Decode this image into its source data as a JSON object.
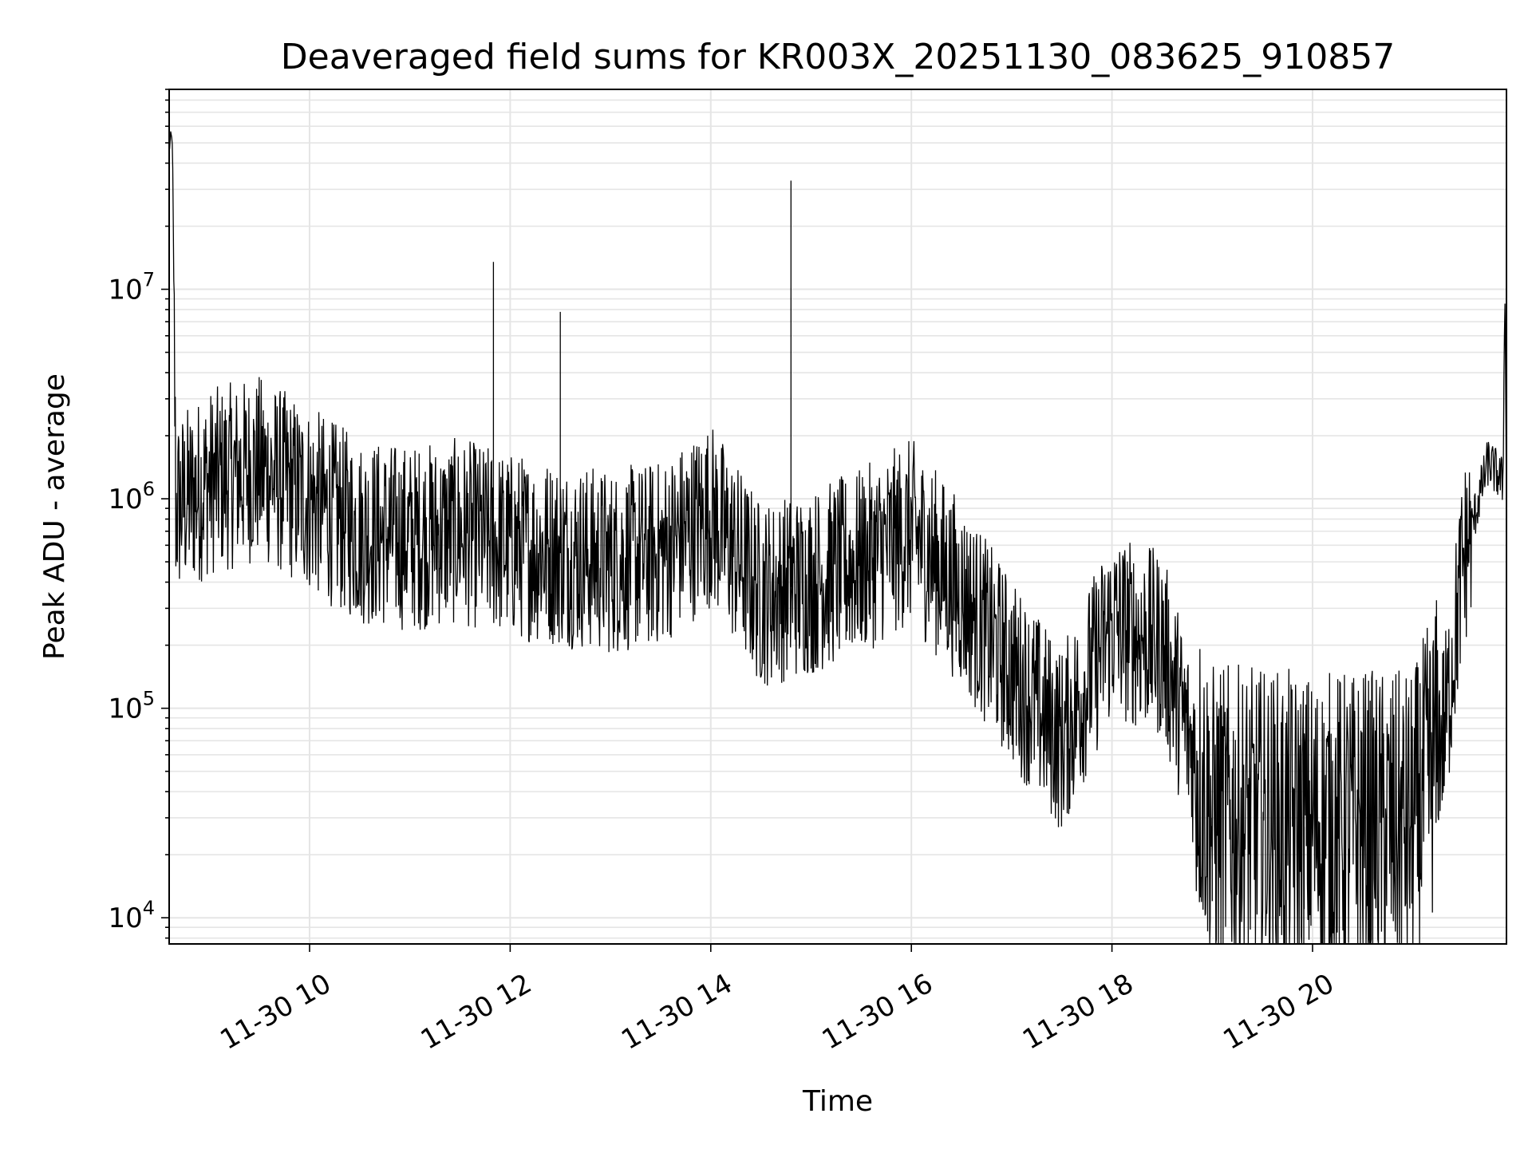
{
  "chart_data": {
    "type": "line",
    "title": "Deaveraged field sums for KR003X_20251130_083625_910857",
    "xlabel": "Time",
    "ylabel": "Peak ADU - average",
    "yscale": "log",
    "ylim": [
      7500,
      90000000
    ],
    "xlim": [
      "2025-11-30 08:36",
      "2025-11-30 21:56"
    ],
    "grid": true,
    "line_color": "#000000",
    "grid_color": "#e5e5e5",
    "x_ticks": [
      "11-30 10",
      "11-30 12",
      "11-30 14",
      "11-30 16",
      "11-30 18",
      "11-30 20"
    ],
    "x_tick_times": [
      "2025-11-30 10:00",
      "2025-11-30 12:00",
      "2025-11-30 14:00",
      "2025-11-30 16:00",
      "2025-11-30 18:00",
      "2025-11-30 20:00"
    ],
    "y_ticks": [
      {
        "base": "10",
        "exp": "4",
        "value": 10000
      },
      {
        "base": "10",
        "exp": "5",
        "value": 100000
      },
      {
        "base": "10",
        "exp": "6",
        "value": 1000000
      },
      {
        "base": "10",
        "exp": "7",
        "value": 10000000
      }
    ],
    "series": [
      {
        "points": [
          [
            "2025-11-30 08:36",
            45000000
          ],
          [
            "2025-11-30 08:37",
            55000000
          ],
          [
            "2025-11-30 08:38",
            50000000
          ],
          [
            "2025-11-30 08:40",
            900000
          ],
          [
            "2025-11-30 09:00",
            1200000
          ],
          [
            "2025-11-30 09:30",
            1400000
          ],
          [
            "2025-11-30 10:00",
            1000000
          ],
          [
            "2025-11-30 10:30",
            700000
          ],
          [
            "2025-11-30 11:00",
            650000
          ],
          [
            "2025-11-30 11:30",
            700000
          ],
          [
            "2025-11-30 12:00",
            600000
          ],
          [
            "2025-11-30 12:30",
            550000
          ],
          [
            "2025-11-30 13:00",
            500000
          ],
          [
            "2025-11-30 13:30",
            550000
          ],
          [
            "2025-11-30 14:00",
            850000
          ],
          [
            "2025-11-30 14:30",
            350000
          ],
          [
            "2025-11-30 15:00",
            400000
          ],
          [
            "2025-11-30 15:30",
            500000
          ],
          [
            "2025-11-30 16:00",
            700000
          ],
          [
            "2025-11-30 16:30",
            350000
          ],
          [
            "2025-11-30 17:00",
            150000
          ],
          [
            "2025-11-30 17:30",
            70000
          ],
          [
            "2025-11-30 18:00",
            250000
          ],
          [
            "2025-11-30 18:30",
            200000
          ],
          [
            "2025-11-30 19:00",
            30000
          ],
          [
            "2025-11-30 19:30",
            28000
          ],
          [
            "2025-11-30 20:00",
            27000
          ],
          [
            "2025-11-30 20:30",
            28000
          ],
          [
            "2025-11-30 21:00",
            27000
          ],
          [
            "2025-11-30 21:20",
            90000
          ],
          [
            "2025-11-30 21:30",
            500000
          ],
          [
            "2025-11-30 21:45",
            1500000
          ],
          [
            "2025-11-30 21:54",
            1200000
          ],
          [
            "2025-11-30 21:55",
            13000000
          ],
          [
            "2025-11-30 21:56",
            800000
          ]
        ]
      }
    ],
    "extremes": [
      {
        "time": "2025-11-30 11:50",
        "value": 13500000
      },
      {
        "time": "2025-11-30 12:30",
        "value": 7800000
      },
      {
        "time": "2025-11-30 14:48",
        "value": 33000000
      },
      {
        "time": "2025-11-30 19:00",
        "value": 12000
      },
      {
        "time": "2025-11-30 19:55",
        "value": 11000
      },
      {
        "time": "2025-11-30 21:55",
        "value": 13000000
      }
    ]
  }
}
